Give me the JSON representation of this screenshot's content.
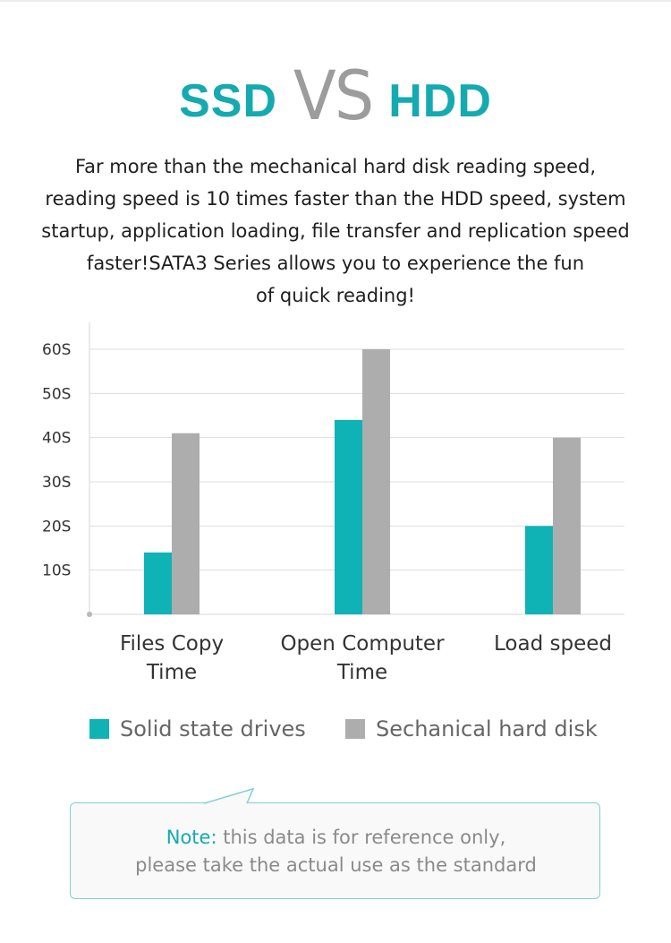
{
  "header": {
    "title_left": "SSD",
    "title_mid": "VS",
    "title_right": "HDD"
  },
  "description": {
    "lines": [
      "Far more than the mechanical hard disk reading speed,",
      "reading speed is 10 times faster than the HDD speed, system",
      "startup, application loading, file transfer and replication speed",
      "faster!SATA3 Series allows you to experience the fun",
      "of quick reading!"
    ]
  },
  "chart_data": {
    "type": "bar",
    "categories": [
      [
        "Files Copy",
        "Time"
      ],
      [
        "Open Computer",
        "Time"
      ],
      [
        "Load speed"
      ]
    ],
    "series": [
      {
        "name": "Solid state drives",
        "color": "#0fb3b6",
        "values": [
          14,
          44,
          20
        ]
      },
      {
        "name": "Sechanical hard disk",
        "color": "#adadad",
        "values": [
          41,
          60,
          40
        ]
      }
    ],
    "yticks": [
      "10S",
      "20S",
      "30S",
      "40S",
      "50S",
      "60S"
    ],
    "ytick_values": [
      10,
      20,
      30,
      40,
      50,
      60
    ],
    "ylim": [
      0,
      60
    ],
    "grid": true,
    "legend": "bottom"
  },
  "note": {
    "label": "Note:",
    "line1": "this data is for reference only,",
    "line2": "please take the actual use as the standard"
  },
  "colors": {
    "accent": "#14aab0",
    "ssd_bar": "#0fb3b6",
    "hdd_bar": "#adadad",
    "vs_text": "#9c9c9c"
  }
}
